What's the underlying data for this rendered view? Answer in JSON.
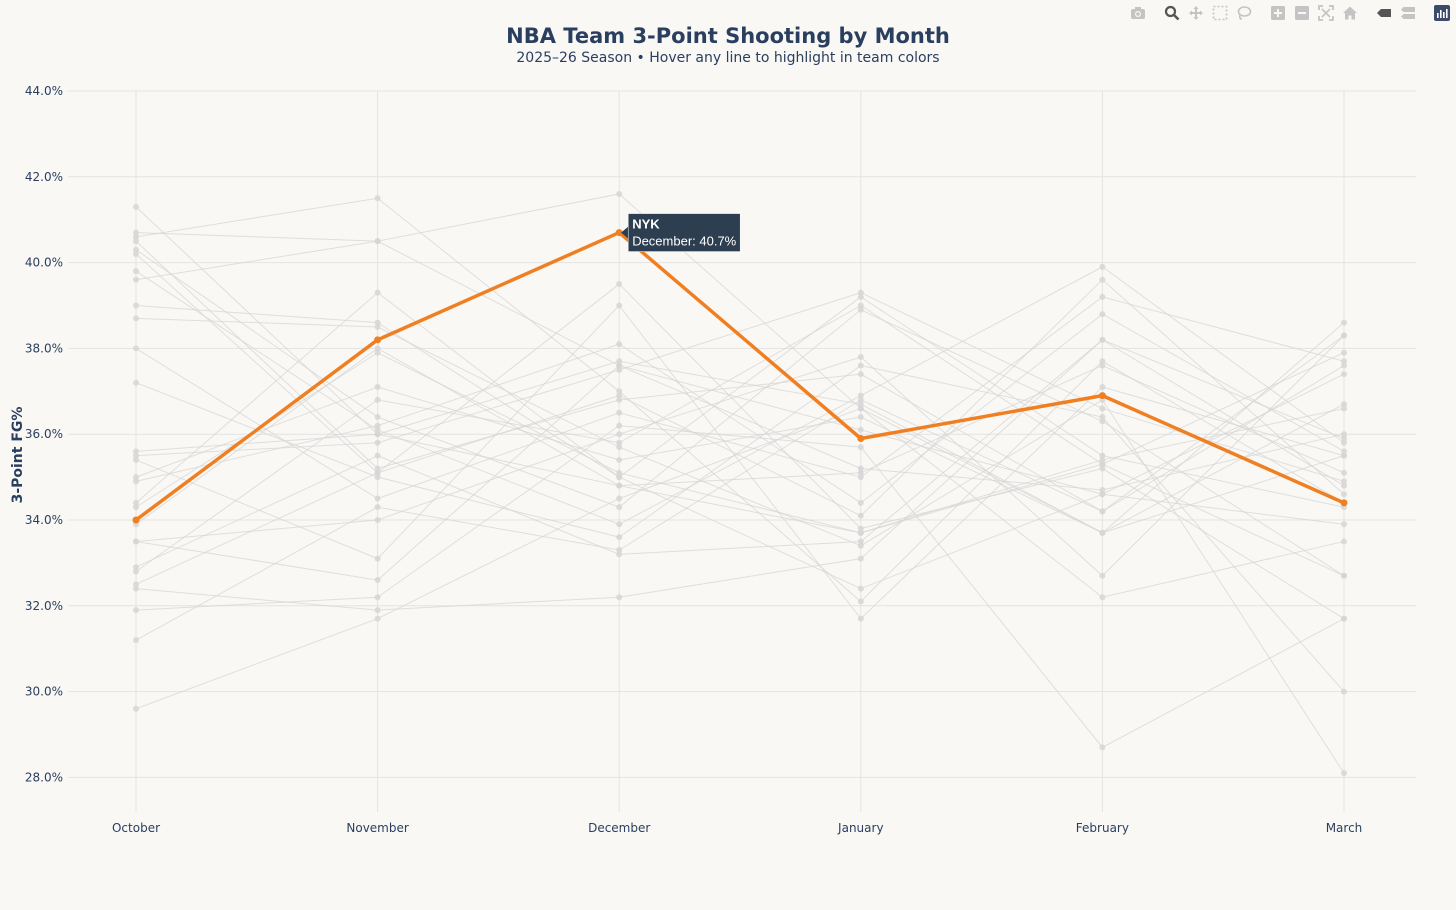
{
  "chart_data": {
    "type": "line",
    "title": "NBA Team 3-Point Shooting by Month",
    "subtitle": "2025–26 Season • Hover any line to highlight in team colors",
    "ylabel": "3-Point FG%",
    "xlabel": "",
    "categories": [
      "October",
      "November",
      "December",
      "January",
      "February",
      "March"
    ],
    "ylim": [
      27.2,
      44.0
    ],
    "yticks": [
      28,
      30,
      32,
      34,
      36,
      38,
      40,
      42,
      44
    ],
    "ytick_labels": [
      "28.0%",
      "30.0%",
      "32.0%",
      "34.0%",
      "36.0%",
      "38.0%",
      "40.0%",
      "42.0%",
      "44.0%"
    ],
    "grid": true,
    "legend": "none",
    "highlighted_series": {
      "name": "NYK",
      "color": "#f07f22",
      "values": [
        34.0,
        38.2,
        40.7,
        35.9,
        36.9,
        34.4
      ]
    },
    "background_series_color": "#d6d6d6",
    "series": [
      {
        "values": [
          41.3,
          36.0,
          34.8,
          33.7,
          35.3,
          37.9
        ]
      },
      {
        "values": [
          40.7,
          40.5,
          37.6,
          35.2,
          34.7,
          36.0
        ]
      },
      {
        "values": [
          40.6,
          41.5,
          37.0,
          32.1,
          37.7,
          34.4
        ]
      },
      {
        "values": [
          40.5,
          35.2,
          36.8,
          37.4,
          34.2,
          38.3
        ]
      },
      {
        "values": [
          40.3,
          36.4,
          34.3,
          38.9,
          36.3,
          32.7
        ]
      },
      {
        "values": [
          40.2,
          35.1,
          39.5,
          33.8,
          35.2,
          31.7
        ]
      },
      {
        "values": [
          39.8,
          36.1,
          33.9,
          36.9,
          39.9,
          35.8
        ]
      },
      {
        "values": [
          39.6,
          40.5,
          41.6,
          36.6,
          32.2,
          33.5
        ]
      },
      {
        "values": [
          39.0,
          38.6,
          35.0,
          39.2,
          35.5,
          34.3
        ]
      },
      {
        "values": [
          38.7,
          38.5,
          35.7,
          33.4,
          36.8,
          28.1
        ]
      },
      {
        "values": [
          38.0,
          34.5,
          36.5,
          35.0,
          39.2,
          37.7
        ]
      },
      {
        "values": [
          37.2,
          35.0,
          33.6,
          37.6,
          36.4,
          30.0
        ]
      },
      {
        "values": [
          35.6,
          36.0,
          37.7,
          36.7,
          33.7,
          38.6
        ]
      },
      {
        "values": [
          35.4,
          33.1,
          39.0,
          31.7,
          37.1,
          35.5
        ]
      },
      {
        "values": [
          35.0,
          37.1,
          35.4,
          36.4,
          33.7,
          36.7
        ]
      },
      {
        "values": [
          34.9,
          36.2,
          38.1,
          34.4,
          38.8,
          35.6
        ]
      },
      {
        "values": [
          34.4,
          39.3,
          35.0,
          32.4,
          34.6,
          37.4
        ]
      },
      {
        "values": [
          33.9,
          38.0,
          34.8,
          35.1,
          37.6,
          35.1
        ]
      },
      {
        "values": [
          33.5,
          34.0,
          36.0,
          37.8,
          32.7,
          38.3
        ]
      },
      {
        "values": [
          33.5,
          32.6,
          37.6,
          36.1,
          34.6,
          33.9
        ]
      },
      {
        "values": [
          32.9,
          35.5,
          33.2,
          33.5,
          38.2,
          34.8
        ]
      },
      {
        "values": [
          32.8,
          36.8,
          35.8,
          39.0,
          35.3,
          32.7
        ]
      },
      {
        "values": [
          32.5,
          35.1,
          36.9,
          34.1,
          39.6,
          34.6
        ]
      },
      {
        "values": [
          32.4,
          31.9,
          32.2,
          33.1,
          38.2,
          35.9
        ]
      },
      {
        "values": [
          31.9,
          32.2,
          36.2,
          35.7,
          28.7,
          31.7
        ]
      },
      {
        "values": [
          31.2,
          34.3,
          33.3,
          36.8,
          34.2,
          37.6
        ]
      },
      {
        "values": [
          29.6,
          31.7,
          34.5,
          36.6,
          33.7,
          35.5
        ]
      },
      {
        "values": [
          35.5,
          35.8,
          37.5,
          39.3,
          36.6,
          34.9
        ]
      },
      {
        "values": [
          34.3,
          37.9,
          35.1,
          33.7,
          35.4,
          36.6
        ]
      }
    ],
    "tooltip": {
      "team": "NYK",
      "text": "December: 40.7%",
      "category_index": 2
    }
  },
  "modebar": {
    "icons": [
      "camera-icon",
      "zoom-icon",
      "pan-icon",
      "box-select-icon",
      "lasso-icon",
      "zoom-in-icon",
      "zoom-out-icon",
      "autoscale-icon",
      "reset-axes-icon",
      "hover-closest-icon",
      "hover-compare-icon",
      "plotly-logo-icon"
    ]
  }
}
